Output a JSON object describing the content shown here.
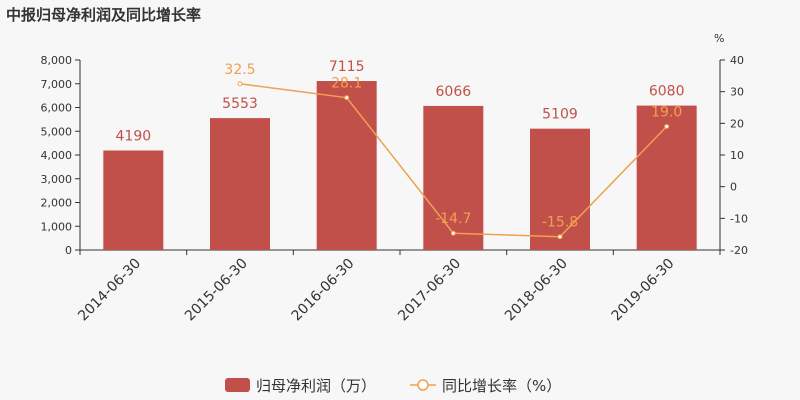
{
  "title": "中报归母净利润及同比增长率",
  "chart_data": {
    "type": "bar",
    "categories": [
      "2014-06-30",
      "2015-06-30",
      "2016-06-30",
      "2017-06-30",
      "2018-06-30",
      "2019-06-30"
    ],
    "series": [
      {
        "name": "归母净利润（万）",
        "type": "bar",
        "axis": "left",
        "color": "#c1504b",
        "values": [
          4190,
          5553,
          7115,
          6066,
          5109,
          6080
        ],
        "labels": [
          "4190",
          "5553",
          "7115",
          "6066",
          "5109",
          "6080"
        ]
      },
      {
        "name": "同比增长率（%）",
        "type": "line",
        "axis": "right",
        "color": "#f0a050",
        "values": [
          null,
          32.5,
          28.1,
          -14.7,
          -15.8,
          19.0
        ],
        "labels": [
          "",
          "32.5",
          "28.1",
          "-14.7",
          "-15.8",
          "19.0"
        ]
      }
    ],
    "y_left": {
      "min": 0,
      "max": 8000,
      "ticks": [
        "0",
        "1,000",
        "2,000",
        "3,000",
        "4,000",
        "5,000",
        "6,000",
        "7,000",
        "8,000"
      ]
    },
    "y_right": {
      "min": -20,
      "max": 40,
      "unit": "%",
      "ticks": [
        "-20",
        "-10",
        "0",
        "10",
        "20",
        "30",
        "40"
      ]
    },
    "legend_position": "bottom",
    "grid": false
  }
}
